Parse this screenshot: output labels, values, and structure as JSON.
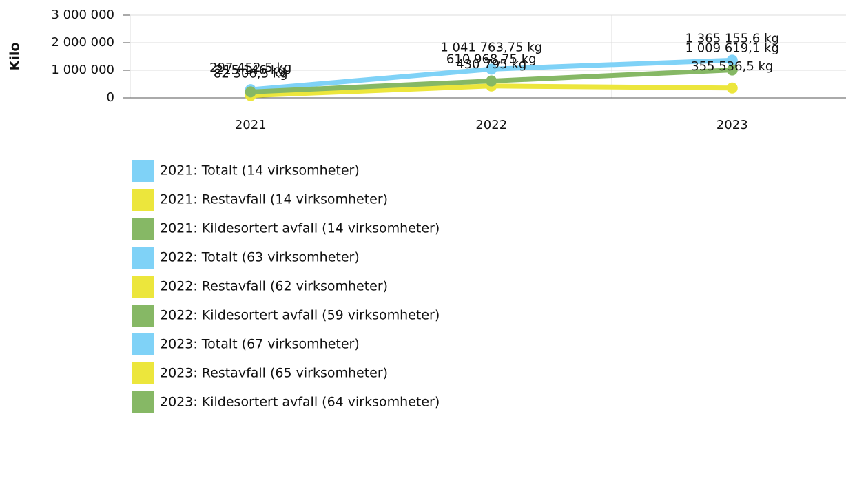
{
  "chart_data": {
    "type": "line",
    "y_label": "Kilo",
    "categories": [
      "2021",
      "2022",
      "2023"
    ],
    "series": [
      {
        "color": "#7fd2f7",
        "values": [
          297452.5,
          1041763.75,
          1365155.6
        ],
        "value_labels": [
          "297 452,5 kg",
          "1 041 763,75 kg",
          "1 365 155,6 kg"
        ]
      },
      {
        "color": "#ece63c",
        "values": [
          82306.5,
          430795,
          355536.5
        ],
        "value_labels": [
          "82 306,5 kg",
          "430 795 kg",
          "355 536,5 kg"
        ]
      },
      {
        "color": "#86b865",
        "values": [
          215146,
          610968.75,
          1009619.1
        ],
        "value_labels": [
          "215 146 kg",
          "610 968,75 kg",
          "1 009 619,1 kg"
        ]
      }
    ],
    "ylim": [
      0,
      3000000
    ],
    "yticks": [
      0,
      {
        "value": 1000000,
        "label": "1 000 000"
      },
      {
        "value": 2000000,
        "label": "2 000 000"
      },
      {
        "value": 3000000,
        "label": "3 000 000"
      }
    ],
    "grid": true,
    "legend": [
      {
        "label": "2021: Totalt (14 virksomheter)",
        "color": "#7fd2f7"
      },
      {
        "label": "2021: Restavfall (14 virksomheter)",
        "color": "#ece63c"
      },
      {
        "label": "2021: Kildesortert avfall (14 virksomheter)",
        "color": "#86b865"
      },
      {
        "label": "2022: Totalt (63 virksomheter)",
        "color": "#7fd2f7"
      },
      {
        "label": "2022: Restavfall (62 virksomheter)",
        "color": "#ece63c"
      },
      {
        "label": "2022: Kildesortert avfall (59 virksomheter)",
        "color": "#86b865"
      },
      {
        "label": "2023: Totalt (67 virksomheter)",
        "color": "#7fd2f7"
      },
      {
        "label": "2023: Restavfall (65 virksomheter)",
        "color": "#ece63c"
      },
      {
        "label": "2023: Kildesortert avfall (64 virksomheter)",
        "color": "#86b865"
      }
    ]
  }
}
